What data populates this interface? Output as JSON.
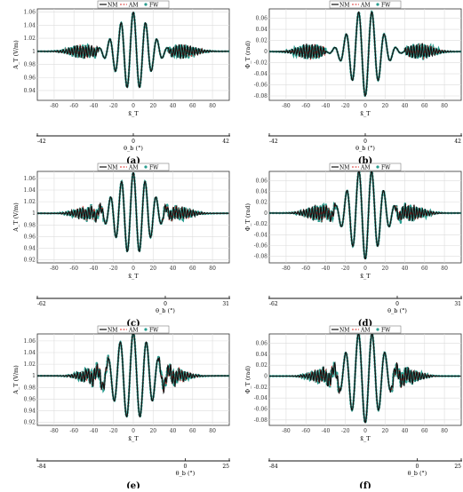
{
  "legend": {
    "nm": "NM",
    "am": "AM",
    "fw": "FW"
  },
  "colors": {
    "nm": "#111111",
    "am": "#d9302c",
    "fw": "#2a9d8f",
    "grid": "#dcdcdc"
  },
  "chart_data": [
    {
      "id": "a",
      "type": "line",
      "caption": "(a)",
      "ylabel": "A_T (V/m)",
      "xlabel": "x̃_T",
      "xlim": [
        -97,
        97
      ],
      "ylim": [
        0.925,
        1.065
      ],
      "xticks": [
        -80,
        -60,
        -40,
        -20,
        0,
        20,
        40,
        60,
        80
      ],
      "yticks": [
        0.94,
        0.96,
        0.98,
        1,
        1.02,
        1.04,
        1.06
      ],
      "ytick_labels": [
        "0.94",
        "0.96",
        "0.98",
        "1",
        "1.02",
        "1.04",
        "1.06"
      ],
      "angle_axis": {
        "label": "θ_b (°)",
        "ticks": [
          "-42",
          "0",
          "42"
        ]
      },
      "baseline": 1,
      "amplitude": 0.06,
      "envelope_width": 22,
      "freq": 0.48,
      "phase": 0,
      "center_dip": true,
      "noise_region": [
        35,
        95
      ]
    },
    {
      "id": "b",
      "type": "line",
      "caption": "(b)",
      "ylabel": "Φ_T (rad)",
      "xlabel": "x̃_T",
      "xlim": [
        -97,
        97
      ],
      "ylim": [
        -0.088,
        0.077
      ],
      "xticks": [
        -80,
        -60,
        -40,
        -20,
        0,
        20,
        40,
        60,
        80
      ],
      "yticks": [
        -0.08,
        -0.06,
        -0.04,
        -0.02,
        0,
        0.02,
        0.04,
        0.06
      ],
      "ytick_labels": [
        "-0.08",
        "-0.06",
        "-0.04",
        "-0.02",
        "0",
        "0.02",
        "0.04",
        "0.06"
      ],
      "angle_axis": {
        "label": "θ_b (°)",
        "ticks": [
          "-42",
          "0",
          "42"
        ]
      },
      "baseline": 0,
      "amplitude": 0.08,
      "envelope_width": 20,
      "freq": 0.45,
      "phase": 3.14,
      "center_dip": false,
      "noise_region": [
        40,
        95
      ]
    },
    {
      "id": "c",
      "type": "line",
      "caption": "(c)",
      "ylabel": "A_T (V/m)",
      "xlabel": "x̃_T",
      "xlim": [
        -97,
        97
      ],
      "ylim": [
        0.915,
        1.072
      ],
      "xticks": [
        -80,
        -60,
        -40,
        -20,
        0,
        20,
        40,
        60,
        80
      ],
      "yticks": [
        0.92,
        0.94,
        0.96,
        0.98,
        1,
        1.02,
        1.04,
        1.06
      ],
      "ytick_labels": [
        "0.92",
        "0.94",
        "0.96",
        "0.98",
        "1",
        "1.02",
        "1.04",
        "1.06"
      ],
      "angle_axis": {
        "label": "θ_b (°)",
        "ticks": [
          "-62",
          "0",
          "31"
        ]
      },
      "baseline": 1,
      "amplitude": 0.07,
      "envelope_width": 24,
      "freq": 0.5,
      "phase": 0,
      "center_dip": true,
      "noise_region": [
        30,
        95
      ]
    },
    {
      "id": "d",
      "type": "line",
      "caption": "(d)",
      "ylabel": "Φ_T (rad)",
      "xlabel": "x̃_T",
      "xlim": [
        -97,
        97
      ],
      "ylim": [
        -0.092,
        0.077
      ],
      "xticks": [
        -80,
        -60,
        -40,
        -20,
        0,
        20,
        40,
        60,
        80
      ],
      "yticks": [
        -0.08,
        -0.06,
        -0.04,
        -0.02,
        0,
        0.02,
        0.04,
        0.06
      ],
      "ytick_labels": [
        "-0.08",
        "-0.06",
        "-0.04",
        "-0.02",
        "0",
        "0.02",
        "0.04",
        "0.06"
      ],
      "angle_axis": {
        "label": "θ_b (°)",
        "ticks": [
          "-62",
          "0",
          "31"
        ]
      },
      "baseline": 0,
      "amplitude": 0.085,
      "envelope_width": 22,
      "freq": 0.47,
      "phase": 3.14,
      "center_dip": false,
      "noise_region": [
        30,
        95
      ]
    },
    {
      "id": "e",
      "type": "line",
      "caption": "(e)",
      "ylabel": "A_T (V/m)",
      "xlabel": "x̃_T",
      "xlim": [
        -97,
        97
      ],
      "ylim": [
        0.915,
        1.072
      ],
      "xticks": [
        -80,
        -60,
        -40,
        -20,
        0,
        20,
        40,
        60,
        80
      ],
      "yticks": [
        0.92,
        0.94,
        0.96,
        0.98,
        1,
        1.02,
        1.04,
        1.06
      ],
      "ytick_labels": [
        "0.92",
        "0.94",
        "0.96",
        "0.98",
        "1",
        "1.02",
        "1.04",
        "1.06"
      ],
      "angle_axis": {
        "label": "θ_b (°)",
        "ticks": [
          "-84",
          "0",
          "25"
        ]
      },
      "baseline": 1,
      "amplitude": 0.075,
      "envelope_width": 26,
      "freq": 0.45,
      "phase": 0,
      "center_dip": true,
      "noise_region": [
        25,
        95
      ]
    },
    {
      "id": "f",
      "type": "line",
      "caption": "(f)",
      "ylabel": "Φ_T (rad)",
      "xlabel": "x̃_T",
      "xlim": [
        -97,
        97
      ],
      "ylim": [
        -0.09,
        0.077
      ],
      "xticks": [
        -80,
        -60,
        -40,
        -20,
        0,
        20,
        40,
        60,
        80
      ],
      "yticks": [
        -0.08,
        -0.06,
        -0.04,
        -0.02,
        0,
        0.02,
        0.04,
        0.06
      ],
      "ytick_labels": [
        "-0.08",
        "-0.06",
        "-0.04",
        "-0.02",
        "0",
        "0.02",
        "0.04",
        "0.06"
      ],
      "angle_axis": {
        "label": "θ_b (°)",
        "ticks": [
          "-84",
          "0",
          "25"
        ]
      },
      "baseline": 0,
      "amplitude": 0.085,
      "envelope_width": 24,
      "freq": 0.44,
      "phase": 3.14,
      "center_dip": false,
      "noise_region": [
        25,
        95
      ]
    }
  ]
}
